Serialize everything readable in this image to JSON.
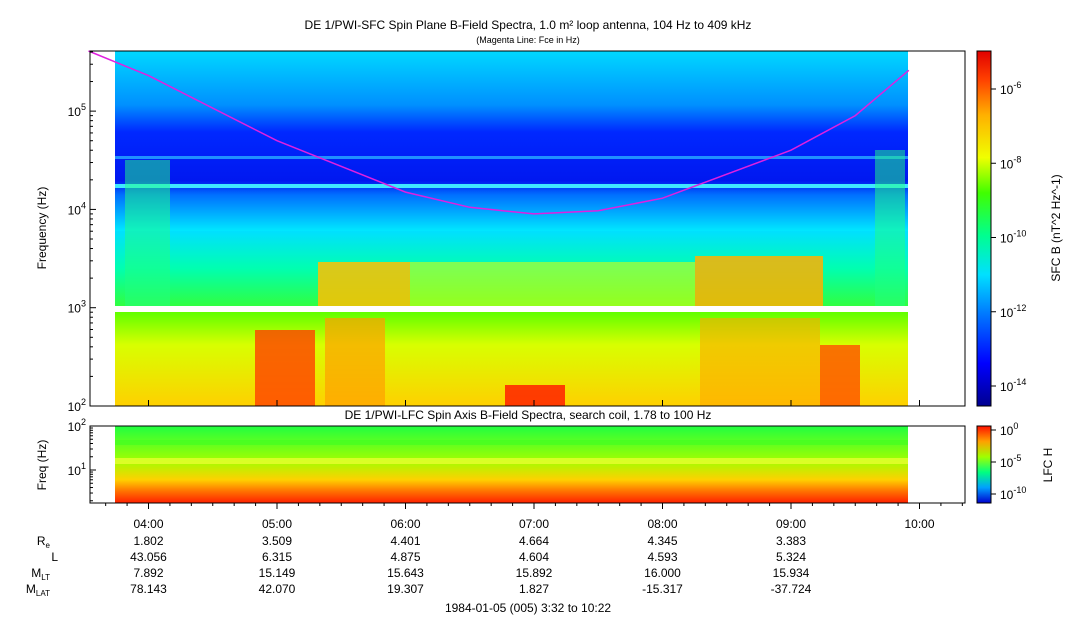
{
  "chart_data": [
    {
      "type": "heatmap",
      "title": "DE 1/PWI-SFC  Spin Plane B-Field Spectra, 1.0 m² loop antenna, 104 Hz to 409 kHz",
      "subtitle": "(Magenta Line: Fce in Hz)",
      "ylabel": "Frequency (Hz)",
      "yscale": "log",
      "ylim": [
        100,
        409000
      ],
      "y_ticks": [
        "10^2",
        "10^3",
        "10^4",
        "10^5"
      ],
      "colorbar": {
        "label": "SFC B (nT^2 Hz^-1)",
        "scale": "log",
        "ticks": [
          "10^-6",
          "10^-8",
          "10^-10",
          "10^-12",
          "10^-14"
        ]
      },
      "series": [
        {
          "name": "Fce in Hz",
          "color": "#e020e0",
          "x": [
            "03:32",
            "04:00",
            "05:00",
            "06:00",
            "06:30",
            "07:00",
            "07:30",
            "08:00",
            "09:00",
            "09:30",
            "09:55"
          ],
          "y": [
            500000,
            230000,
            50000,
            15000,
            10500,
            9000,
            9700,
            13000,
            40000,
            90000,
            260000
          ]
        }
      ]
    },
    {
      "type": "heatmap",
      "title": "DE 1/PWI-LFC  Spin Axis B-Field Spectra, search coil, 1.78 to 100 Hz",
      "ylabel": "Freq (Hz)",
      "yscale": "log",
      "ylim": [
        1.78,
        100
      ],
      "y_ticks": [
        "10^1",
        "10^2"
      ],
      "colorbar": {
        "label": "LFC H",
        "scale": "log",
        "ticks": [
          "10^0",
          "10^-5",
          "10^-10"
        ]
      }
    }
  ],
  "x_axis": {
    "ticks": [
      "04:00",
      "05:00",
      "06:00",
      "07:00",
      "08:00",
      "09:00",
      "10:00"
    ],
    "footer": "1984-01-05 (005) 3:32 to 10:22"
  },
  "ephemeris": [
    {
      "label": "R",
      "sub": "e",
      "values": [
        "1.802",
        "3.509",
        "4.401",
        "4.664",
        "4.345",
        "3.383"
      ]
    },
    {
      "label": "L",
      "sub": "",
      "values": [
        "43.056",
        "6.315",
        "4.875",
        "4.604",
        "4.593",
        "5.324"
      ]
    },
    {
      "label": "M",
      "sub": "LT",
      "values": [
        "7.892",
        "15.149",
        "15.643",
        "15.892",
        "16.000",
        "15.934"
      ]
    },
    {
      "label": "M",
      "sub": "LAT",
      "values": [
        "78.143",
        "42.070",
        "19.307",
        "1.827",
        "-15.317",
        "-37.724"
      ]
    }
  ],
  "colors": {
    "fce_line": "#e020e0",
    "frame": "#000000",
    "background": "#ffffff"
  }
}
